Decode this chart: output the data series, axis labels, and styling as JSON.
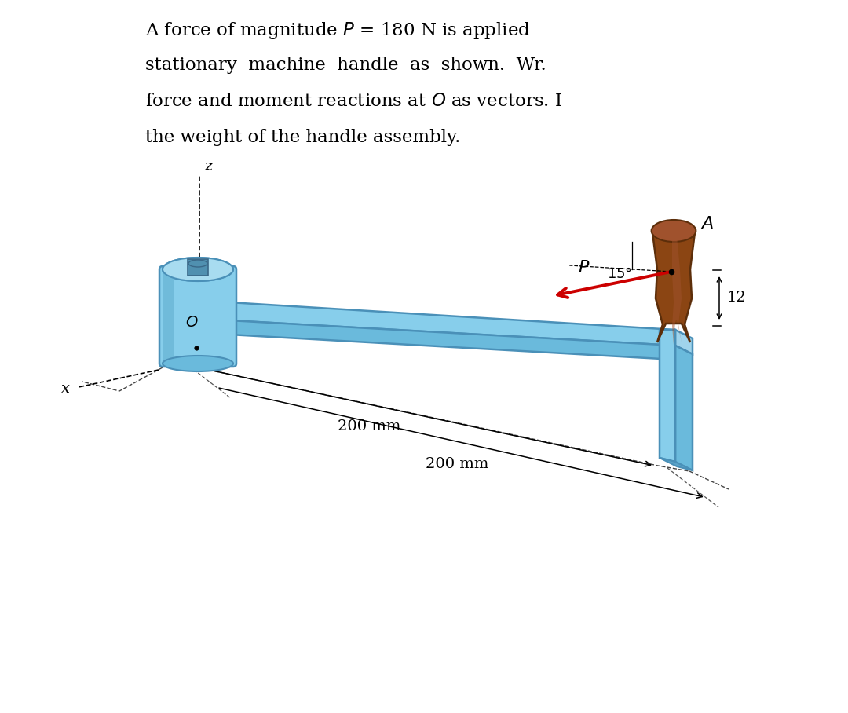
{
  "title_lines": [
    "A force of magnitude $P$ = 180 N is applied",
    "stationary  machine  handle  as  shown.  Wr.",
    "force and moment reactions at $O$ as vectors. I",
    "the weight of the handle assembly."
  ],
  "background_color": "#ffffff",
  "handle_color": "#8B4513",
  "handle_dark": "#5C2E0A",
  "handle_light": "#A0522D",
  "bar_color": "#87CEEB",
  "bar_mid": "#6ABADC",
  "bar_dark": "#4A90B8",
  "cyl_color": "#87CEEB",
  "cyl_mid": "#6ABADC",
  "cyl_dark": "#4A90B8",
  "arrow_color": "#CC0000",
  "dim_color": "#000000",
  "text_color": "#000000"
}
